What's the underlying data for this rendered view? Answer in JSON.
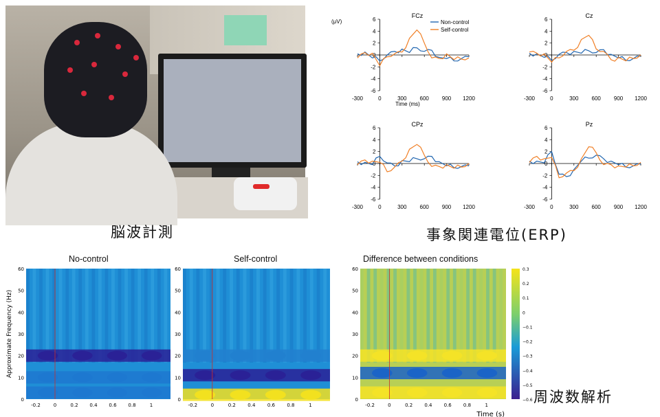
{
  "captions": {
    "eeg": "脳波計測",
    "erp": "事象関連電位(ERP)",
    "tf": "周波数解析"
  },
  "colors": {
    "non_control": "#2166b0",
    "self_control": "#f07f25",
    "heat_low": "#3b1f8f",
    "heat_mid": "#1a9bd7",
    "heat_high": "#f5e31a"
  },
  "chart_data": [
    {
      "type": "line",
      "title": "FCz",
      "ylabel": "(μV)",
      "xlabel": "Time (ms)",
      "xlim": [
        -300,
        1200
      ],
      "ylim": [
        -6,
        6
      ],
      "xticks": [
        -300,
        0,
        300,
        600,
        900,
        1200
      ],
      "yticks": [
        6,
        4,
        2,
        0,
        -2,
        -4,
        -6
      ],
      "legend": [
        "Non-control",
        "Self-control"
      ],
      "legend_position": "top-right",
      "x": [
        -300,
        -200,
        -100,
        0,
        100,
        200,
        300,
        400,
        500,
        600,
        700,
        800,
        900,
        1000,
        1100,
        1200
      ],
      "series": [
        {
          "name": "Non-control",
          "values": [
            0.2,
            0.5,
            -0.5,
            -1.0,
            0,
            0.6,
            1.0,
            0.4,
            1.2,
            0.6,
            0.8,
            -0.4,
            -0.6,
            -1.0,
            -0.6,
            -0.3
          ]
        },
        {
          "name": "Self-control",
          "values": [
            -0.5,
            0.4,
            0.3,
            -1.8,
            -0.3,
            0.2,
            0.5,
            2.8,
            4.2,
            2.0,
            -0.5,
            -0.6,
            0.2,
            -0.8,
            -0.7,
            -0.5
          ]
        }
      ]
    },
    {
      "type": "line",
      "title": "Cz",
      "xlim": [
        -300,
        1200
      ],
      "ylim": [
        -6,
        6
      ],
      "xticks": [
        -300,
        0,
        300,
        600,
        900,
        1200
      ],
      "yticks": [
        6,
        4,
        2,
        0,
        -2,
        -4,
        -6
      ],
      "x": [
        -300,
        -200,
        -100,
        0,
        100,
        200,
        300,
        400,
        500,
        600,
        700,
        800,
        900,
        1000,
        1100,
        1200
      ],
      "series": [
        {
          "name": "Non-control",
          "values": [
            0.3,
            0.2,
            -0.4,
            -0.9,
            0.1,
            0.4,
            0.6,
            0.3,
            0.7,
            0.4,
            0.9,
            0.1,
            -0.5,
            -0.9,
            -0.6,
            -0.2
          ]
        },
        {
          "name": "Self-control",
          "values": [
            0.5,
            0.3,
            0.2,
            -1.2,
            -0.5,
            0.6,
            0.8,
            2.6,
            3.3,
            1.0,
            0.6,
            -0.8,
            -0.4,
            -1.0,
            -0.6,
            0.0
          ]
        }
      ]
    },
    {
      "type": "line",
      "title": "CPz",
      "xlim": [
        -300,
        1200
      ],
      "ylim": [
        -6,
        6
      ],
      "xticks": [
        -300,
        0,
        300,
        600,
        900,
        1200
      ],
      "yticks": [
        6,
        4,
        2,
        0,
        -2,
        -4,
        -6
      ],
      "x": [
        -300,
        -200,
        -100,
        0,
        100,
        200,
        300,
        400,
        500,
        600,
        700,
        800,
        900,
        1000,
        1100,
        1200
      ],
      "series": [
        {
          "name": "Non-control",
          "values": [
            0.3,
            0.2,
            -0.2,
            1.2,
            0.1,
            -0.4,
            0.5,
            0.3,
            0.8,
            0.8,
            1.2,
            0.3,
            -0.4,
            -0.7,
            -0.5,
            -0.4
          ]
        },
        {
          "name": "Self-control",
          "values": [
            -0.2,
            0.6,
            0.4,
            0.2,
            -1.4,
            -0.6,
            0.4,
            2.4,
            3.2,
            1.4,
            -0.5,
            -0.5,
            -0.2,
            -0.8,
            -0.6,
            0.0
          ]
        }
      ]
    },
    {
      "type": "line",
      "title": "Pz",
      "xlim": [
        -300,
        1200
      ],
      "ylim": [
        -6,
        6
      ],
      "xticks": [
        -300,
        0,
        300,
        600,
        900,
        1200
      ],
      "yticks": [
        6,
        4,
        2,
        0,
        -2,
        -4,
        -6
      ],
      "x": [
        -300,
        -200,
        -100,
        0,
        100,
        200,
        300,
        400,
        500,
        600,
        700,
        800,
        900,
        1000,
        1100,
        1200
      ],
      "series": [
        {
          "name": "Non-control",
          "values": [
            0.4,
            0.4,
            0.1,
            2.0,
            -1.8,
            -2.2,
            -1.0,
            0.4,
            0.9,
            1.4,
            0.8,
            0.4,
            -0.2,
            -0.6,
            -0.4,
            -0.1
          ]
        },
        {
          "name": "Self-control",
          "values": [
            0.2,
            1.2,
            0.8,
            1.0,
            -2.4,
            -1.6,
            -1.2,
            0.8,
            2.8,
            1.8,
            -0.2,
            -0.2,
            -0.4,
            -0.6,
            -0.4,
            0.2
          ]
        }
      ]
    },
    {
      "type": "heatmap",
      "title": "No-control",
      "ylabel": "Approximate Frequency (Hz)",
      "xlim": [
        -0.3,
        1.2
      ],
      "ylim": [
        0,
        60
      ],
      "xticks": [
        "-0.2",
        "0",
        "0.2",
        "0.4",
        "0.6",
        "0.8",
        "1"
      ],
      "yticks": [
        0,
        10,
        20,
        30,
        40,
        50,
        60
      ],
      "bands": [
        {
          "freq": 20,
          "strength": "low"
        },
        {
          "freq": 10,
          "strength": "mid"
        },
        {
          "freq": 3,
          "strength": "mid"
        }
      ]
    },
    {
      "type": "heatmap",
      "title": "Self-control",
      "xlim": [
        -0.3,
        1.2
      ],
      "ylim": [
        0,
        60
      ],
      "xticks": [
        "-0.2",
        "0",
        "0.2",
        "0.4",
        "0.6",
        "0.8",
        "1"
      ],
      "yticks": [
        0,
        10,
        20,
        30,
        40,
        50,
        60
      ],
      "bands": [
        {
          "freq": 11,
          "strength": "low"
        },
        {
          "freq": 20,
          "strength": "mid"
        },
        {
          "freq": 2,
          "strength": "high"
        }
      ]
    },
    {
      "type": "heatmap",
      "title": "Difference between conditions",
      "xlabel": "Time (s)",
      "xlim": [
        -0.3,
        1.2
      ],
      "ylim": [
        0,
        60
      ],
      "xticks": [
        "-0.2",
        "0",
        "0.2",
        "0.4",
        "0.6",
        "0.8",
        "1"
      ],
      "yticks": [
        0,
        10,
        20,
        30,
        40,
        50,
        60
      ],
      "colorbar": {
        "range": [
          -0.6,
          0.3
        ],
        "ticks": [
          "0.3",
          "0.2",
          "0.1",
          "0",
          "−0.1",
          "−0.2",
          "−0.3",
          "−0.4",
          "−0.5",
          "−0.6"
        ]
      },
      "bands": [
        {
          "freq": 20,
          "strength": "high"
        },
        {
          "freq": 12,
          "strength": "low"
        },
        {
          "freq": 3,
          "strength": "high"
        }
      ]
    }
  ]
}
